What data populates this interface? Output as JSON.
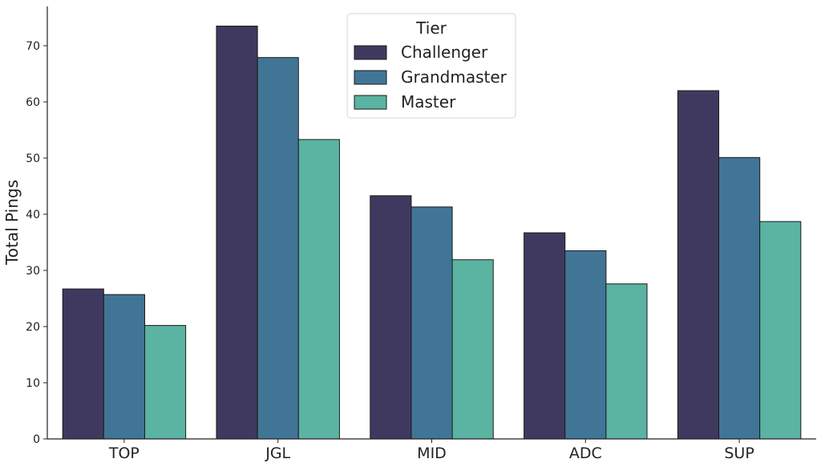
{
  "chart_data": {
    "type": "bar",
    "title": "",
    "xlabel": "",
    "ylabel": "Total Pings",
    "categories": [
      "TOP",
      "JGL",
      "MID",
      "ADC",
      "SUP"
    ],
    "series": [
      {
        "name": "Challenger",
        "values": [
          26.7,
          73.5,
          43.3,
          36.7,
          62.0
        ],
        "color": "#40395f"
      },
      {
        "name": "Grandmaster",
        "values": [
          25.7,
          67.9,
          41.3,
          33.5,
          50.1
        ],
        "color": "#417596"
      },
      {
        "name": "Master",
        "values": [
          20.2,
          53.3,
          31.9,
          27.6,
          38.7
        ],
        "color": "#5bb3a2"
      }
    ],
    "ylim": [
      0,
      77
    ],
    "yticks": [
      0,
      10,
      20,
      30,
      40,
      50,
      60,
      70
    ],
    "grid": false,
    "legend": {
      "title": "Tier",
      "placement": "top-center"
    }
  }
}
